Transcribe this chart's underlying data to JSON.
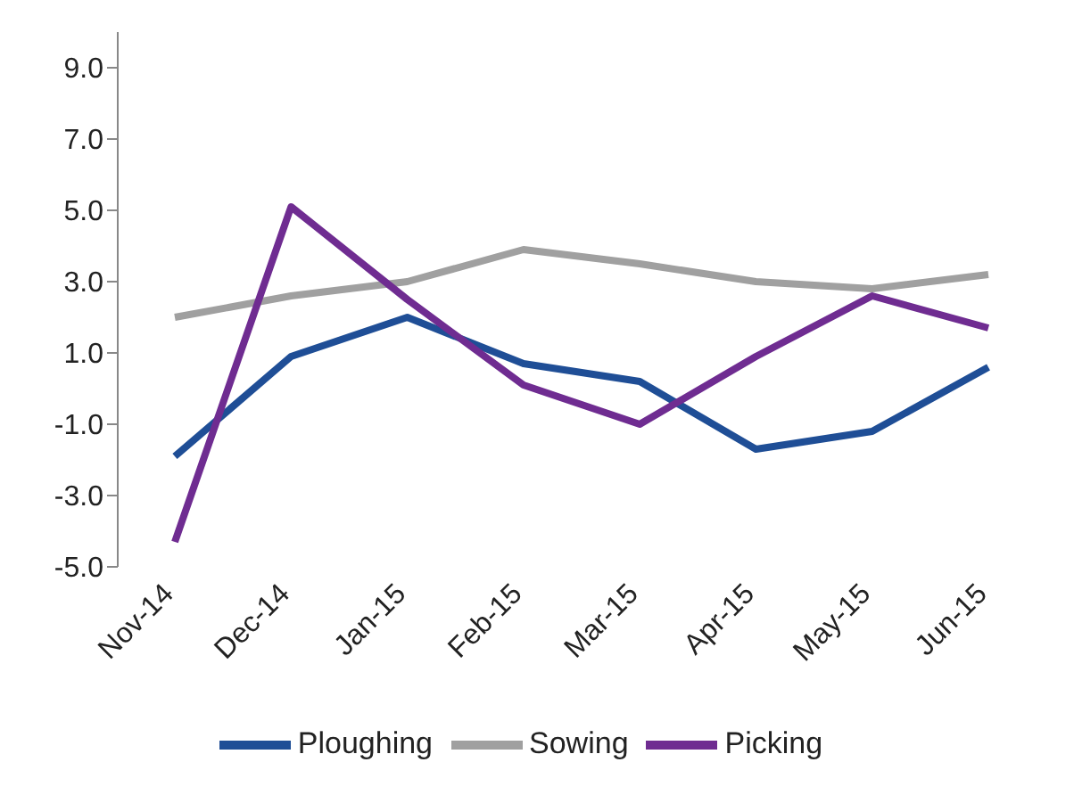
{
  "chart_data": {
    "type": "line",
    "categories": [
      "Nov-14",
      "Dec-14",
      "Jan-15",
      "Feb-15",
      "Mar-15",
      "Apr-15",
      "May-15",
      "Jun-15"
    ],
    "series": [
      {
        "name": "Ploughing",
        "color": "#1f4e96",
        "values": [
          -1.9,
          0.9,
          2.0,
          0.7,
          0.2,
          -1.7,
          -1.2,
          0.6
        ]
      },
      {
        "name": "Sowing",
        "color": "#a0a0a0",
        "values": [
          2.0,
          2.6,
          3.0,
          3.9,
          3.5,
          3.0,
          2.8,
          3.2
        ]
      },
      {
        "name": "Picking",
        "color": "#6f2c91",
        "values": [
          -4.3,
          5.1,
          2.5,
          0.1,
          -1.0,
          0.9,
          2.6,
          1.7
        ]
      }
    ],
    "ylim": [
      -5,
      10
    ],
    "yticks": [
      {
        "value": -5,
        "label": "-5.0"
      },
      {
        "value": -3,
        "label": "-3.0"
      },
      {
        "value": -1,
        "label": "-1.0"
      },
      {
        "value": 1,
        "label": "1.0"
      },
      {
        "value": 3,
        "label": "3.0"
      },
      {
        "value": 5,
        "label": "5.0"
      },
      {
        "value": 7,
        "label": "7.0"
      },
      {
        "value": 9,
        "label": "9.0"
      }
    ],
    "grid": false,
    "legend": "bottom",
    "marker": "none",
    "line_style": "solid"
  }
}
